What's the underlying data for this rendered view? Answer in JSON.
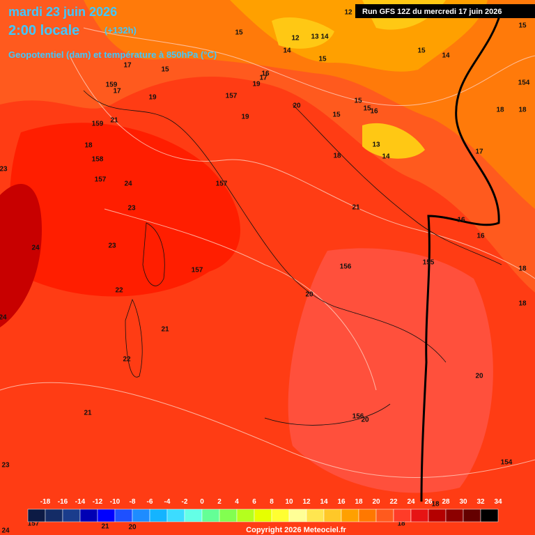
{
  "header": {
    "date": "mardi 23 juin 2026",
    "time": "2:00 locale",
    "lead": "(+132h)",
    "field": "Geopotentiel (dam) et température à 850hPa (°C)",
    "run": "Run GFS 12Z du mercredi 17 juin 2026"
  },
  "map_labels": [
    "12",
    "15",
    "12",
    "13",
    "14",
    "15",
    "14",
    "15",
    "14",
    "15",
    "17",
    "15",
    "16",
    "17",
    "159",
    "17",
    "19",
    "154",
    "157",
    "19",
    "20",
    "15",
    "15",
    "16",
    "18",
    "18",
    "15",
    "19",
    "159",
    "21",
    "18",
    "13",
    "14",
    "17",
    "18",
    "23",
    "158",
    "157",
    "24",
    "157",
    "23",
    "21",
    "16",
    "16",
    "24",
    "23",
    "156",
    "155",
    "18",
    "157",
    "22",
    "20",
    "18",
    "24",
    "21",
    "22",
    "20",
    "21",
    "156",
    "20",
    "23",
    "154",
    "157",
    "21",
    "20",
    "24",
    "18",
    "18"
  ],
  "scale": {
    "labels": [
      -18,
      -16,
      -14,
      -12,
      -10,
      -8,
      -6,
      -4,
      -2,
      0,
      2,
      4,
      6,
      8,
      10,
      12,
      14,
      16,
      18,
      20,
      22,
      24,
      26,
      28,
      30,
      32,
      34
    ],
    "colors": [
      "#0c1a44",
      "#142c66",
      "#1a3c8c",
      "#0000b4",
      "#0000ff",
      "#1e50ff",
      "#1e8cff",
      "#14b4ff",
      "#3cdcff",
      "#64ffe6",
      "#64ff96",
      "#82ff50",
      "#b4ff1e",
      "#e6ff00",
      "#ffff32",
      "#ffff96",
      "#ffe650",
      "#ffc828",
      "#ffa000",
      "#ff7800",
      "#ff5a1e",
      "#ff3c28",
      "#e61414",
      "#b40000",
      "#8c0000",
      "#640000",
      "#000000"
    ]
  },
  "footer": "Copyright 2026 Meteociel.fr"
}
